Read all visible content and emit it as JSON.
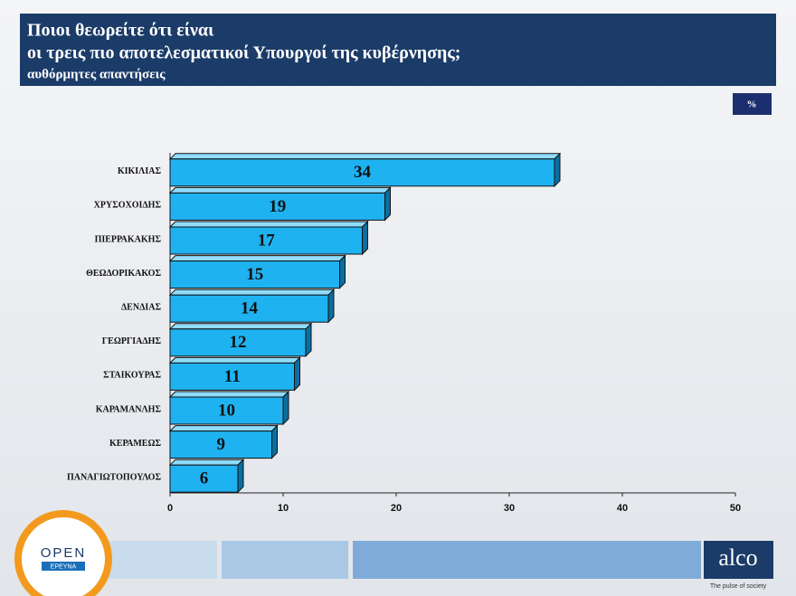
{
  "chart_data": {
    "type": "hbar",
    "title": [
      "Ποιοι θεωρείτε ότι είναι",
      "οι τρεις πιο αποτελεσματικοί Υπουργοί της κυβέρνησης;"
    ],
    "subtitle": "αυθόρμητες απαντήσεις",
    "unit_label": "%",
    "categories": [
      "ΚΙΚΙΛΙΑΣ",
      "ΧΡΥΣΟΧΟΙΔΗΣ",
      "ΠΙΕΡΡΑΚΑΚΗΣ",
      "ΘΕΩΔΟΡΙΚΑΚΟΣ",
      "ΔΕΝΔΙΑΣ",
      "ΓΕΩΡΓΙΑΔΗΣ",
      "ΣΤΑΙΚΟΥΡΑΣ",
      "ΚΑΡΑΜΑΝΛΗΣ",
      "ΚΕΡΑΜΕΩΣ",
      "ΠΑΝΑΓΙΩΤΟΠΟΥΛΟΣ"
    ],
    "values": [
      34,
      19,
      17,
      15,
      14,
      12,
      11,
      10,
      9,
      6
    ],
    "color": "#1fb2f0",
    "xlim": [
      0,
      50
    ],
    "xticks": [
      0,
      10,
      20,
      30,
      40,
      50
    ],
    "grid": false
  },
  "logos": {
    "open": "OPEN",
    "open_sub": "ΕΡΕΥΝΑ",
    "alco": "alco",
    "alco_tagline": "The pulse of society"
  }
}
